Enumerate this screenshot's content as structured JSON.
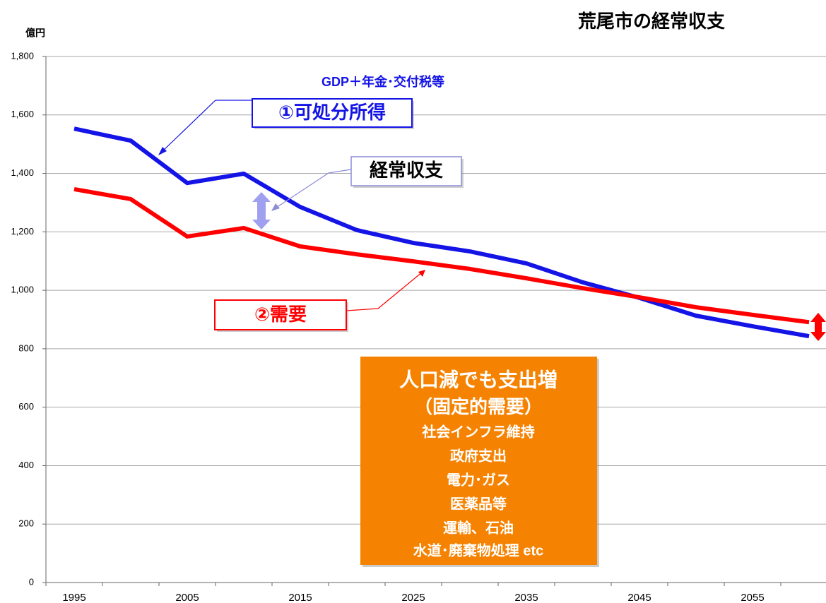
{
  "chart_data": {
    "type": "line",
    "title": "荒尾市の経常収支",
    "y_label": "億円",
    "categories": [
      "1995",
      null,
      "2005",
      null,
      "2015",
      null,
      "2025",
      null,
      "2035",
      null,
      "2045",
      null,
      "2055",
      null
    ],
    "series": [
      {
        "name": "①可処分所得",
        "color": "#1414e6",
        "values": [
          1553,
          1512,
          1367,
          1399,
          1285,
          1206,
          1162,
          1133,
          1092,
          1027,
          974,
          913,
          877,
          843
        ]
      },
      {
        "name": "②需要",
        "color": "#ff0000",
        "values": [
          1346,
          1312,
          1184,
          1213,
          1150,
          1123,
          1099,
          1073,
          1041,
          1007,
          976,
          942,
          916,
          891
        ]
      }
    ],
    "ylim": [
      0,
      1800
    ],
    "yticks": [
      0,
      200,
      400,
      600,
      800,
      {
        "value": 1000,
        "label": "1,000"
      },
      {
        "value": 1200,
        "label": "1,200"
      },
      {
        "value": 1400,
        "label": "1,400"
      },
      {
        "value": 1600,
        "label": "1,600"
      },
      {
        "value": 1800,
        "label": "1,800"
      }
    ],
    "grid": true,
    "annotations": {
      "income_note": "GDP＋年金･交付税等",
      "balance_label": "経常収支",
      "box_lines": [
        "人口減でも支出増",
        "（固定的需要）",
        "社会インフラ維持",
        "政府支出",
        "電力･ガス",
        "医薬品等",
        "運輸、石油",
        "水道･廃棄物処理 etc"
      ]
    }
  }
}
